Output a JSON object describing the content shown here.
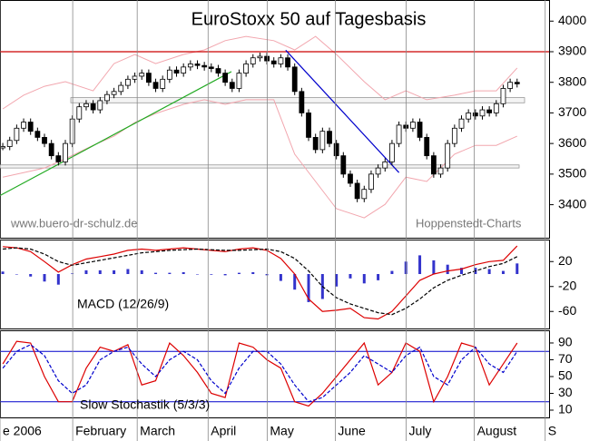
{
  "chart_data": [
    {
      "type": "candlestick",
      "title": "EuroStoxx 50 auf Tagesbasis",
      "values": [
        3590,
        3610,
        3650,
        3670,
        3640,
        3620,
        3600,
        3560,
        3540,
        3600,
        3680,
        3720,
        3730,
        3710,
        3740,
        3760,
        3770,
        3790,
        3810,
        3820,
        3830,
        3800,
        3780,
        3810,
        3840,
        3830,
        3850,
        3860,
        3855,
        3850,
        3845,
        3830,
        3800,
        3780,
        3830,
        3860,
        3880,
        3885,
        3870,
        3860,
        3880,
        3850,
        3770,
        3700,
        3620,
        3580,
        3640,
        3600,
        3560,
        3500,
        3470,
        3420,
        3450,
        3500,
        3520,
        3540,
        3600,
        3660,
        3650,
        3670,
        3620,
        3560,
        3500,
        3520,
        3600,
        3650,
        3680,
        3700,
        3690,
        3710,
        3700,
        3730,
        3780,
        3800,
        3795
      ],
      "xlim": [
        -0.4,
        78.6
      ],
      "ylim": [
        3292,
        4069
      ],
      "yticks": [
        3400,
        3500,
        3600,
        3700,
        3800,
        3900,
        4000
      ],
      "bands": [
        {
          "color": "#f2a6ae",
          "x": [
            0,
            3,
            6,
            9,
            13,
            16,
            19,
            22,
            26,
            29,
            32,
            35,
            39,
            42,
            45,
            48,
            52,
            55,
            58,
            61,
            65,
            68,
            71,
            74
          ],
          "values": [
            3713,
            3758,
            3787,
            3802,
            3772,
            3861,
            3891,
            3861,
            3891,
            3906,
            3936,
            3950,
            3936,
            3906,
            3950,
            3891,
            3802,
            3743,
            3772,
            3743,
            3758,
            3772,
            3772,
            3847
          ]
        },
        {
          "color": "#f2a6ae",
          "x": [
            0,
            3,
            6,
            9,
            13,
            16,
            19,
            22,
            26,
            29,
            32,
            35,
            39,
            42,
            45,
            48,
            52,
            55,
            58,
            61,
            65,
            68,
            71,
            74
          ],
          "values": [
            3490,
            3505,
            3520,
            3550,
            3594,
            3624,
            3669,
            3698,
            3728,
            3743,
            3728,
            3743,
            3743,
            3565,
            3476,
            3387,
            3357,
            3401,
            3490,
            3476,
            3565,
            3594,
            3594,
            3624
          ]
        }
      ],
      "trendlines": [
        {
          "color": "#22aa22",
          "x": [
            -0.4,
            32.9
          ],
          "values": [
            3430,
            3835
          ]
        },
        {
          "color": "#0000cc",
          "x": [
            40.7,
            57
          ],
          "values": [
            3905,
            3505
          ]
        }
      ],
      "levels": [
        {
          "value": 3900,
          "color": "#cc0000"
        }
      ],
      "zones": [
        [
          3733,
          3750
        ],
        [
          3520,
          3530
        ]
      ],
      "annotations": [
        "www.buero-dr-schulz.de",
        "Hoppenstedt-Charts"
      ]
    },
    {
      "type": "macd",
      "label": "MACD (12/26/9)",
      "xlim": [
        -0.2,
        39.3
      ],
      "ylim": [
        -87.3,
        55.3
      ],
      "yticks": [
        20,
        -20,
        -60
      ],
      "histogram": {
        "color": "#3333cc",
        "values": [
          4,
          0,
          -4,
          -12,
          -17,
          1,
          6,
          6,
          6,
          8,
          6,
          2,
          2,
          3,
          0,
          -1,
          -2,
          2,
          3,
          -2,
          -11,
          -25,
          -45,
          -40,
          -20,
          -7,
          -15,
          -10,
          5,
          20,
          30,
          22,
          15,
          10,
          10,
          8,
          5,
          17
        ]
      },
      "series": [
        {
          "color": "#dd0000",
          "dashed": false,
          "values": [
            44,
            42,
            36,
            20,
            3,
            15,
            24,
            28,
            32,
            38,
            40,
            38,
            40,
            42,
            40,
            38,
            36,
            40,
            42,
            38,
            25,
            0,
            -40,
            -60,
            -58,
            -55,
            -70,
            -72,
            -60,
            -35,
            -10,
            0,
            5,
            8,
            15,
            20,
            22,
            45
          ]
        },
        {
          "color": "#000000",
          "dashed": true,
          "values": [
            40,
            42,
            40,
            32,
            20,
            14,
            18,
            22,
            26,
            30,
            34,
            36,
            38,
            39,
            40,
            39,
            38,
            38,
            39,
            40,
            36,
            25,
            5,
            -20,
            -38,
            -48,
            -55,
            -62,
            -65,
            -55,
            -40,
            -22,
            -10,
            -2,
            5,
            12,
            17,
            28
          ]
        }
      ]
    },
    {
      "type": "stochastic",
      "label": "Slow Stochastik (5/3/3)",
      "xlim": [
        -0.2,
        39.3
      ],
      "ylim": [
        1.35,
        105.1
      ],
      "yticks": [
        90,
        70,
        50,
        30,
        10
      ],
      "levels": [
        80,
        20
      ],
      "level_color": "#0000cc",
      "series": [
        {
          "color": "#dd0000",
          "dashed": false,
          "values": [
            65,
            92,
            90,
            50,
            20,
            20,
            60,
            85,
            80,
            88,
            40,
            45,
            90,
            75,
            55,
            30,
            25,
            90,
            85,
            70,
            60,
            20,
            15,
            30,
            50,
            70,
            90,
            40,
            55,
            90,
            80,
            20,
            50,
            90,
            85,
            40,
            65,
            90
          ]
        },
        {
          "color": "#0000cc",
          "dashed": true,
          "values": [
            60,
            80,
            88,
            75,
            45,
            30,
            40,
            70,
            80,
            85,
            65,
            50,
            70,
            80,
            70,
            45,
            30,
            60,
            80,
            80,
            65,
            40,
            20,
            25,
            40,
            55,
            75,
            65,
            55,
            75,
            85,
            50,
            40,
            70,
            85,
            65,
            55,
            80
          ]
        }
      ],
      "xticks": [
        {
          "value": -0.2,
          "label": "e 2006"
        },
        {
          "value": 5.03,
          "label": "February"
        },
        {
          "value": 9.67,
          "label": "March"
        },
        {
          "value": 14.77,
          "label": "April"
        },
        {
          "value": 19.02,
          "label": "May"
        },
        {
          "value": 23.92,
          "label": "June"
        },
        {
          "value": 29.02,
          "label": "July"
        },
        {
          "value": 33.92,
          "label": "August"
        },
        {
          "value": 39.02,
          "label": "S"
        }
      ]
    }
  ]
}
